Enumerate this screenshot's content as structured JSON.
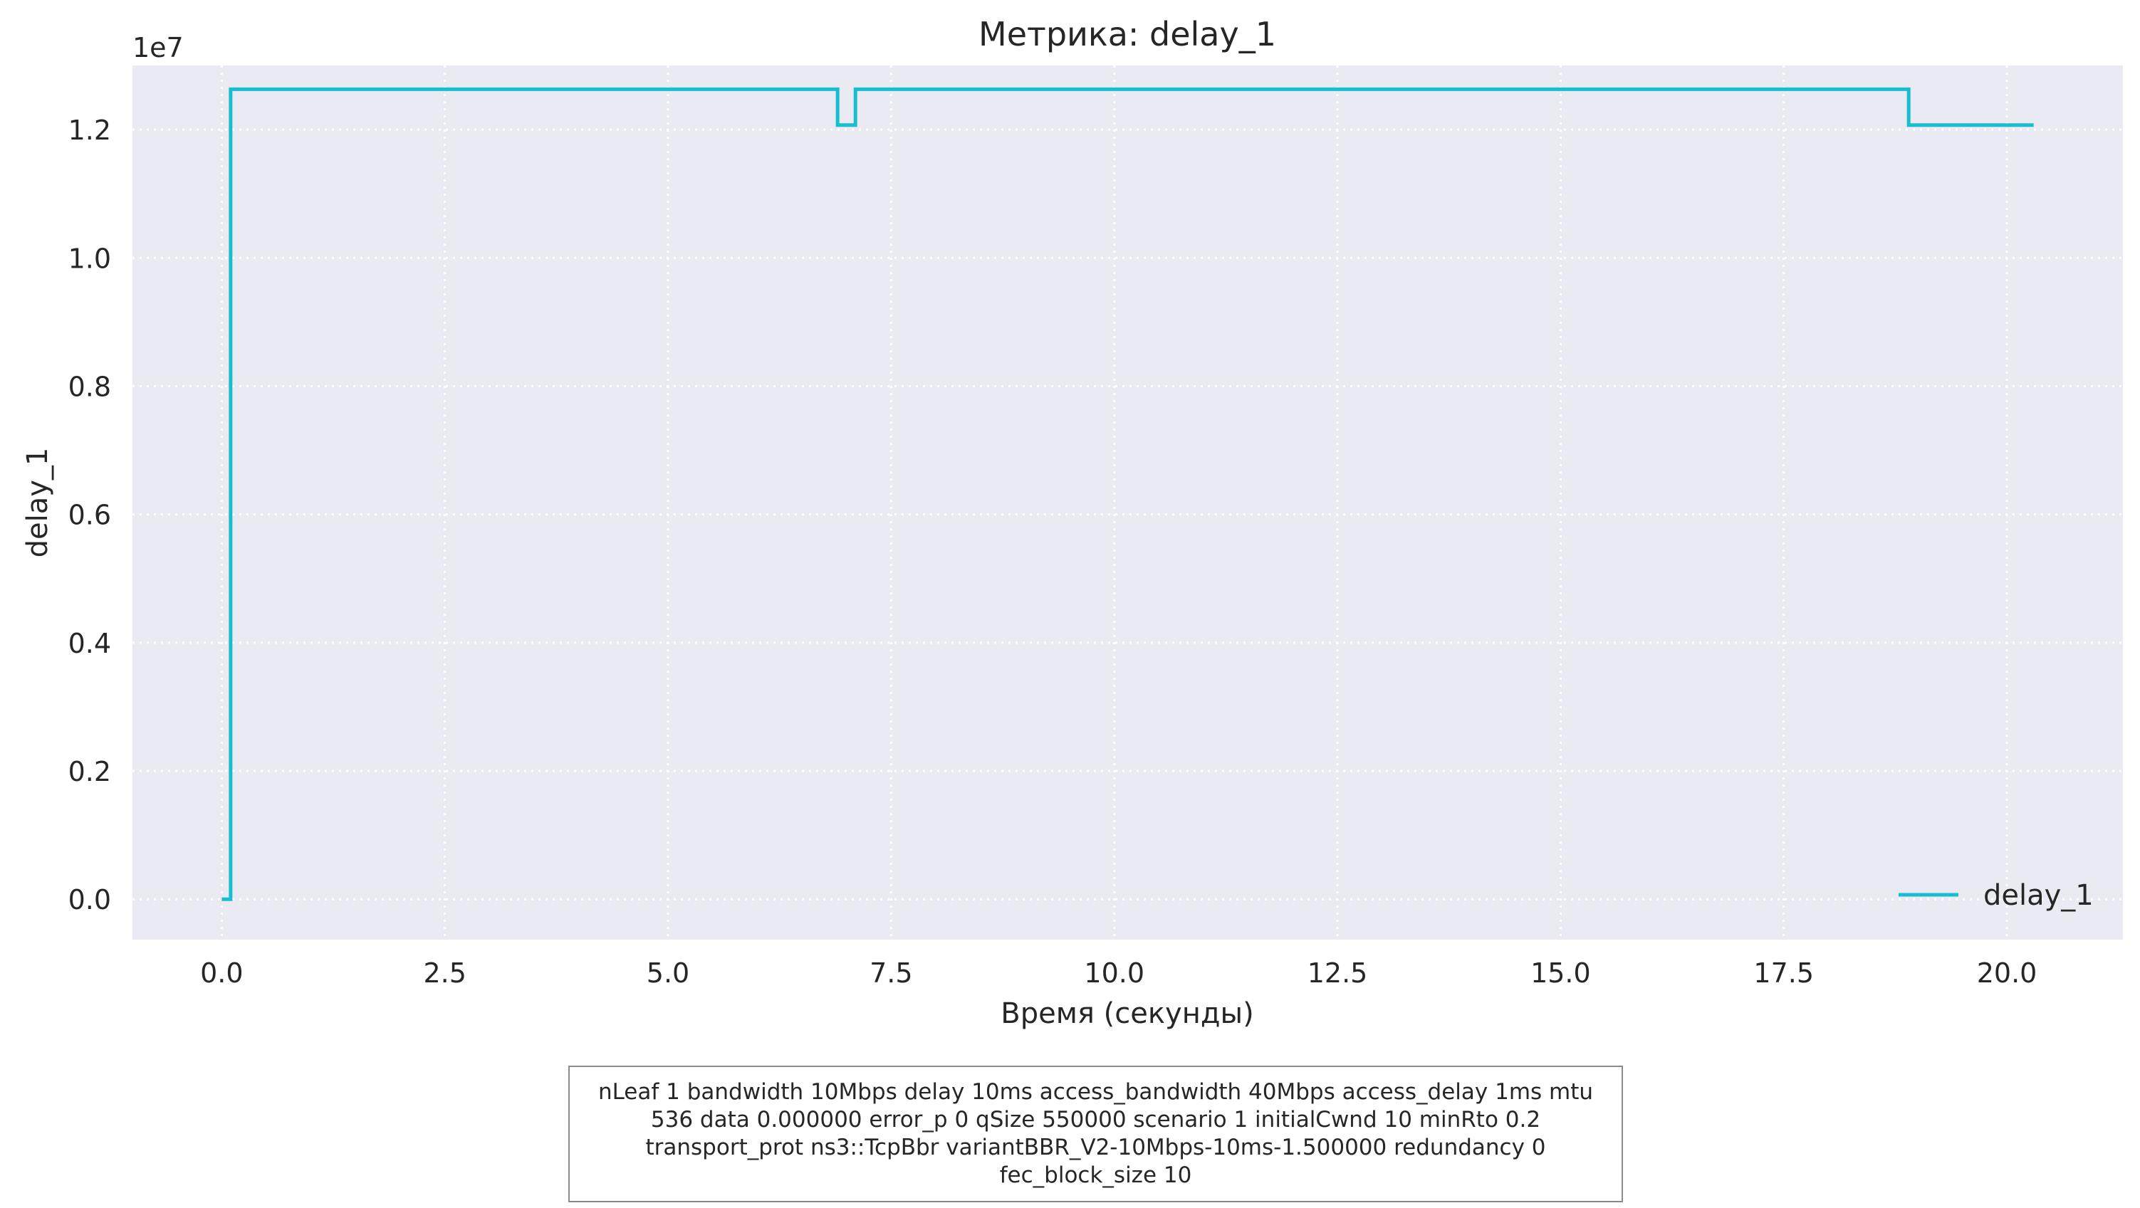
{
  "chart_data": {
    "type": "line",
    "drawstyle": "steps-post",
    "title": "Метрика: delay_1",
    "xlabel": "Время (секунды)",
    "ylabel": "delay_1",
    "y_offset_label": "1e7",
    "xlim": [
      -1.0,
      21.3
    ],
    "ylim": [
      -0.63,
      13.0
    ],
    "x_ticks": [
      0.0,
      2.5,
      5.0,
      7.5,
      10.0,
      12.5,
      15.0,
      17.5,
      20.0
    ],
    "x_tick_labels": [
      "0.0",
      "2.5",
      "5.0",
      "7.5",
      "10.0",
      "12.5",
      "15.0",
      "17.5",
      "20.0"
    ],
    "y_ticks": [
      0.0,
      2.0,
      4.0,
      6.0,
      8.0,
      10.0,
      12.0
    ],
    "y_tick_labels": [
      "0.0",
      "0.2",
      "0.4",
      "0.6",
      "0.8",
      "1.0",
      "1.2"
    ],
    "grid": true,
    "legend_position": "lower-right",
    "series": [
      {
        "name": "delay_1",
        "color": "#17becf",
        "x": [
          0.0,
          0.1,
          6.9,
          7.1,
          18.9,
          20.3
        ],
        "y": [
          0.0,
          12.63,
          12.07,
          12.63,
          12.07,
          12.07
        ]
      }
    ]
  },
  "caption": "nLeaf 1 bandwidth 10Mbps delay  10ms access_bandwidth 40Mbps access_delay 1ms mtu 536 data  0.000000 error_p 0 qSize 550000 scenario 1 initialCwnd  10 minRto 0.2 transport_prot ns3::TcpBbr variantBBR_V2-10Mbps-10ms-1.500000 redundancy 0 fec_block_size 10",
  "colors": {
    "plot_background": "#eaeaf2",
    "grid": "#ffffff",
    "text": "#262626",
    "series": "#17becf"
  }
}
